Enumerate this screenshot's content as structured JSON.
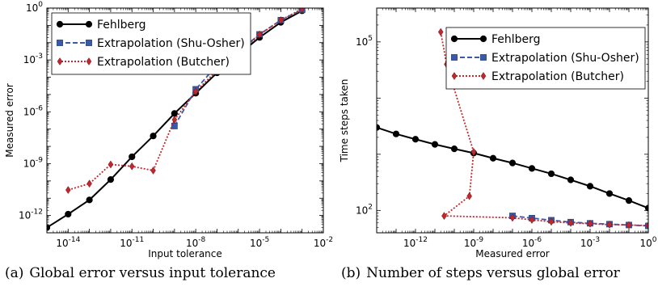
{
  "chart_data": [
    {
      "type": "line",
      "xscale": "log",
      "yscale": "log",
      "xlabel": "Input tolerance",
      "ylabel": "Measured error",
      "xlim": [
        1e-15,
        0.01
      ],
      "ylim": [
        1e-13,
        1
      ],
      "x_ticks": [
        1e-14,
        1e-11,
        1e-08,
        1e-05,
        0.01
      ],
      "x_tick_labels": [
        [
          "10",
          "-14"
        ],
        [
          "10",
          "-11"
        ],
        [
          "10",
          "-8"
        ],
        [
          "10",
          "-5"
        ],
        [
          "10",
          "-2"
        ]
      ],
      "y_ticks": [
        1e-12,
        1e-09,
        1e-06,
        0.001,
        1
      ],
      "y_tick_labels": [
        [
          "10",
          "-12"
        ],
        [
          "10",
          "-9"
        ],
        [
          "10",
          "-6"
        ],
        [
          "10",
          "-3"
        ],
        [
          "10",
          "0"
        ]
      ],
      "legend_position": "top-left",
      "grid": false,
      "series": [
        {
          "name": "Fehlberg",
          "color": "#000000",
          "marker": "circle",
          "linestyle": "solid",
          "x": [
            1e-15,
            1e-14,
            1e-13,
            1e-12,
            1e-11,
            1e-10,
            1e-09,
            1e-08,
            1e-07,
            1e-06,
            1e-05,
            0.0001,
            0.001
          ],
          "y": [
            2e-13,
            1.2e-12,
            8e-12,
            1.2e-10,
            2.5e-09,
            4e-08,
            8e-07,
            1.2e-05,
            0.00018,
            0.002,
            0.02,
            0.15,
            0.7
          ]
        },
        {
          "name": "Extrapolation (Shu-Osher)",
          "color": "#3a5aa8",
          "marker": "square",
          "linestyle": "dashed",
          "x": [
            1e-09,
            1e-08,
            1e-07,
            1e-06,
            1e-05,
            0.0001,
            0.001
          ],
          "y": [
            1.5e-07,
            2e-05,
            0.0005,
            0.003,
            0.03,
            0.2,
            0.8
          ]
        },
        {
          "name": "Extrapolation (Butcher)",
          "color": "#c0282d",
          "marker": "diamond",
          "linestyle": "dotted",
          "x": [
            1e-14,
            1e-13,
            1e-12,
            1e-11,
            1e-10,
            1e-09,
            1e-08,
            1e-07,
            1e-06,
            1e-05,
            0.0001,
            0.001
          ],
          "y": [
            3e-11,
            7e-11,
            9e-10,
            7e-10,
            4e-10,
            3.5e-07,
            1.5e-05,
            0.00025,
            0.002,
            0.03,
            0.2,
            0.9
          ]
        }
      ]
    },
    {
      "type": "line",
      "xscale": "log",
      "yscale": "log",
      "xlabel": "Measured error",
      "ylabel": "Time steps taken",
      "xlim": [
        1e-14,
        1
      ],
      "ylim": [
        40,
        400000
      ],
      "x_ticks": [
        1e-12,
        1e-09,
        1e-06,
        0.001,
        1
      ],
      "x_tick_labels": [
        [
          "10",
          "-12"
        ],
        [
          "10",
          "-9"
        ],
        [
          "10",
          "-6"
        ],
        [
          "10",
          "-3"
        ],
        [
          "10",
          "0"
        ]
      ],
      "y_ticks": [
        100,
        100000
      ],
      "y_tick_labels": [
        [
          "10",
          "2"
        ],
        [
          "10",
          "5"
        ]
      ],
      "legend_position": "top-right",
      "grid": false,
      "series": [
        {
          "name": "Fehlberg",
          "color": "#000000",
          "marker": "circle",
          "linestyle": "solid",
          "x": [
            1e-14,
            1e-13,
            1e-12,
            1e-11,
            1e-10,
            1e-09,
            1e-08,
            1e-07,
            1e-06,
            1e-05,
            0.0001,
            0.001,
            0.01,
            0.1,
            1
          ],
          "y": [
            3000,
            2300,
            1850,
            1500,
            1250,
            1050,
            850,
            700,
            560,
            450,
            350,
            270,
            200,
            150,
            110
          ]
        },
        {
          "name": "Extrapolation (Shu-Osher)",
          "color": "#3a5aa8",
          "marker": "square",
          "linestyle": "dashed",
          "x": [
            1e-07,
            1e-06,
            1e-05,
            0.0001,
            0.001,
            0.01,
            0.1,
            1
          ],
          "y": [
            80,
            73,
            67,
            62,
            59,
            57,
            55,
            53
          ]
        },
        {
          "name": "Extrapolation (Butcher)",
          "color": "#c0282d",
          "marker": "diamond",
          "linestyle": "dotted",
          "x": [
            2e-11,
            4e-11,
            1e-09,
            6e-10,
            3e-11,
            1e-07,
            1e-06,
            1e-05,
            0.0001,
            0.001,
            0.01,
            0.1,
            1
          ],
          "y": [
            150000,
            40000,
            1100,
            180,
            80,
            74,
            68,
            63,
            60,
            58,
            56,
            55,
            54
          ]
        }
      ]
    }
  ],
  "captions": [
    {
      "label": "(a)",
      "text": "Global error versus input tolerance"
    },
    {
      "label": "(b)",
      "text": "Number of steps versus global error"
    }
  ]
}
